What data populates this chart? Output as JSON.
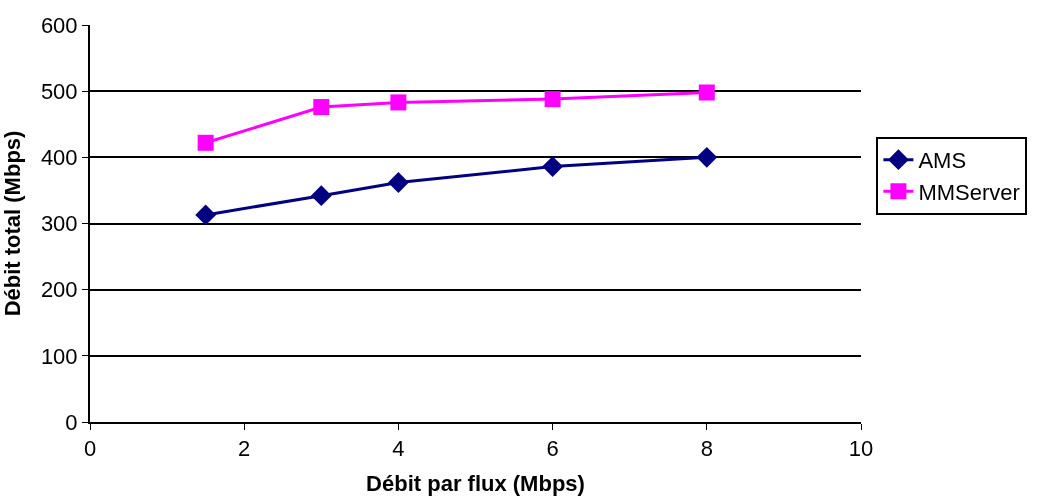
{
  "chart_data": {
    "type": "line",
    "xlabel": "Débit par flux (Mbps)",
    "ylabel": "Débit total (Mbps)",
    "x": [
      1.5,
      3,
      4,
      6,
      8
    ],
    "series": [
      {
        "name": "AMS",
        "color": "#000080",
        "values": [
          313,
          342,
          362,
          386,
          400
        ],
        "marker": "diamond"
      },
      {
        "name": "MMServer",
        "color": "#ff00ff",
        "values": [
          422,
          476,
          483,
          488,
          498
        ],
        "marker": "square"
      }
    ],
    "xlim": [
      0,
      10
    ],
    "xticks": [
      0,
      2,
      4,
      6,
      8,
      10
    ],
    "ylim": [
      0,
      600
    ],
    "yticks": [
      0,
      100,
      200,
      300,
      400,
      500,
      600
    ],
    "grid": "y",
    "legend": "right"
  }
}
